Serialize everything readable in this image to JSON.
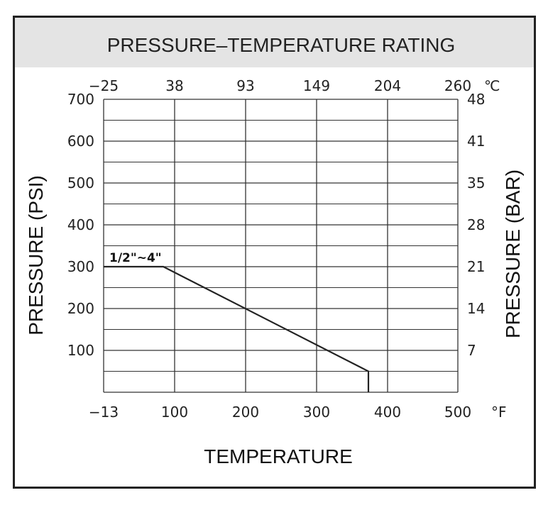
{
  "chart_data": {
    "type": "line",
    "title": "PRESSURE–TEMPERATURE RATING",
    "xlabel": "TEMPERATURE",
    "ylabel": "PRESSURE  (PSI)",
    "y2label": "PRESSURE  (BAR)",
    "x_unit": "°F",
    "x2_unit": "℃",
    "x_ticks": [
      "-13",
      "100",
      "200",
      "300",
      "400",
      "500"
    ],
    "x2_ticks": [
      "-25",
      "38",
      "93",
      "149",
      "204",
      "260"
    ],
    "y_ticks": [
      "100",
      "200",
      "300",
      "400",
      "500",
      "600",
      "700"
    ],
    "y2_ticks": [
      "7",
      "14",
      "21",
      "28",
      "35",
      "41",
      "48"
    ],
    "ylim": [
      0,
      700
    ],
    "grid": true,
    "series": [
      {
        "name": "1/2\"~4\"",
        "x": [
          -13,
          82,
          373,
          373
        ],
        "y": [
          300,
          300,
          50,
          0
        ]
      }
    ]
  }
}
